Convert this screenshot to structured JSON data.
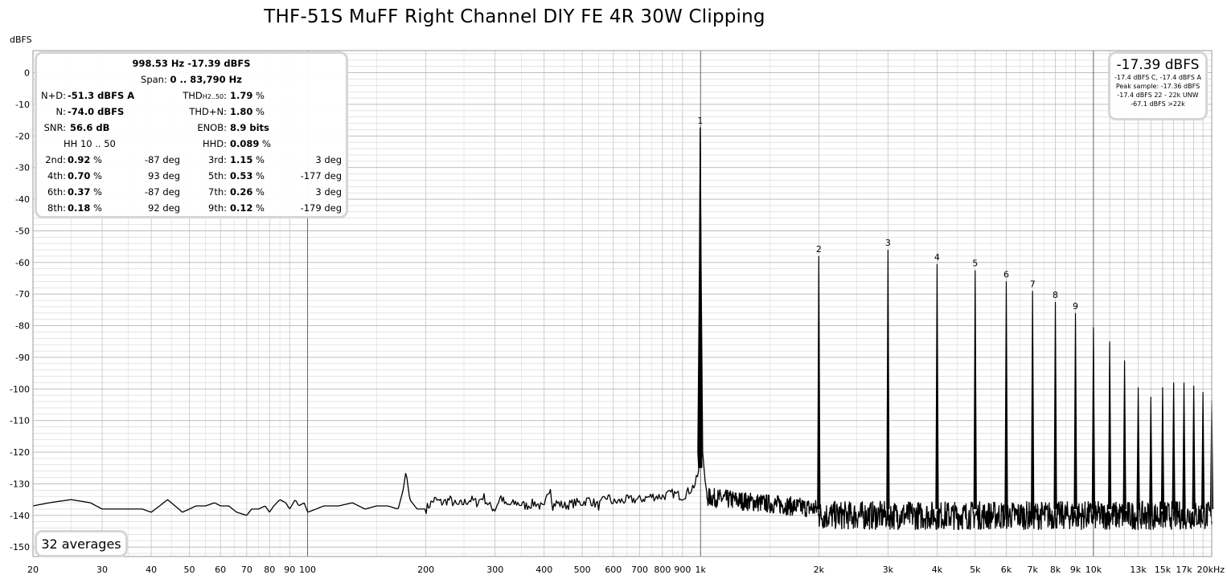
{
  "colors": {
    "trace": "#000000",
    "major_grid": "#7a7a7a",
    "minor_grid": "#d4d4d4",
    "box_border": "#d6d6d6"
  },
  "chart_data": {
    "type": "line",
    "title": "THF-51S MuFF Right Channel DIY FE 4R 30W Clipping",
    "ylabel": "dBFS",
    "xlabel": "",
    "x_scale": "log",
    "xlim": [
      20,
      20000
    ],
    "ylim": [
      -153,
      7
    ],
    "grid": true,
    "y_ticks": [
      0,
      -10,
      -20,
      -30,
      -40,
      -50,
      -60,
      -70,
      -80,
      -90,
      -100,
      -110,
      -120,
      -130,
      -140,
      -150
    ],
    "x_ticks": [
      {
        "value": 20,
        "label": "20"
      },
      {
        "value": 30,
        "label": "30"
      },
      {
        "value": 40,
        "label": "40"
      },
      {
        "value": 50,
        "label": "50"
      },
      {
        "value": 60,
        "label": "60"
      },
      {
        "value": 70,
        "label": "70"
      },
      {
        "value": 80,
        "label": "80"
      },
      {
        "value": 90,
        "label": "90"
      },
      {
        "value": 100,
        "label": "100"
      },
      {
        "value": 200,
        "label": "200"
      },
      {
        "value": 300,
        "label": "300"
      },
      {
        "value": 400,
        "label": "400"
      },
      {
        "value": 500,
        "label": "500"
      },
      {
        "value": 600,
        "label": "600"
      },
      {
        "value": 700,
        "label": "700"
      },
      {
        "value": 800,
        "label": "800"
      },
      {
        "value": 900,
        "label": "900"
      },
      {
        "value": 1000,
        "label": "1k"
      },
      {
        "value": 2000,
        "label": "2k"
      },
      {
        "value": 3000,
        "label": "3k"
      },
      {
        "value": 4000,
        "label": "4k"
      },
      {
        "value": 5000,
        "label": "5k"
      },
      {
        "value": 6000,
        "label": "6k"
      },
      {
        "value": 7000,
        "label": "7k"
      },
      {
        "value": 8000,
        "label": "8k"
      },
      {
        "value": 9000,
        "label": "9k"
      },
      {
        "value": 10000,
        "label": "10k"
      },
      {
        "value": 13000,
        "label": "13k"
      },
      {
        "value": 15000,
        "label": "15k"
      },
      {
        "value": 17000,
        "label": "17k"
      },
      {
        "value": 20000,
        "label": "20kHz"
      }
    ],
    "noise_floor": {
      "x": [
        20,
        22,
        25,
        28,
        30,
        32,
        35,
        38,
        40,
        42,
        44,
        46,
        48,
        50,
        52,
        55,
        58,
        60,
        63,
        66,
        70,
        72,
        75,
        78,
        80,
        82,
        85,
        88,
        90,
        93,
        95,
        98,
        100,
        105,
        110,
        120,
        130,
        140,
        150,
        160,
        170,
        175,
        178,
        182,
        190,
        200,
        210,
        220,
        230,
        240,
        250,
        260,
        270,
        280,
        290,
        300,
        310,
        320,
        340,
        360,
        380,
        400,
        410,
        415,
        420,
        430,
        450,
        480,
        500,
        520,
        550,
        580,
        600,
        650,
        700,
        750,
        800,
        850,
        900,
        940,
        970,
        990
      ],
      "y": [
        -137,
        -136,
        -135,
        -136,
        -138,
        -138,
        -138,
        -138,
        -139,
        -137,
        -135,
        -137,
        -139,
        -138,
        -137,
        -137,
        -136,
        -137,
        -137,
        -139,
        -140,
        -138,
        -138,
        -137,
        -139,
        -137,
        -135,
        -136,
        -138,
        -135,
        -137,
        -136,
        -139,
        -138,
        -137,
        -137,
        -136,
        -138,
        -137,
        -137,
        -138,
        -132,
        -126,
        -135,
        -138,
        -138,
        -135,
        -136,
        -135,
        -137,
        -136,
        -135,
        -136,
        -134,
        -137,
        -138,
        -134,
        -137,
        -136,
        -137,
        -136,
        -138,
        -132,
        -131,
        -137,
        -136,
        -137,
        -136,
        -136,
        -135,
        -137,
        -134,
        -136,
        -135,
        -135,
        -134,
        -134,
        -133,
        -134,
        -132,
        -130,
        -126
      ]
    },
    "hf_floor_level": -140,
    "fundamental": {
      "freq": 998.53,
      "level": -17.39,
      "label": "1"
    },
    "harmonics": [
      {
        "label": "2",
        "freq": 2000,
        "level": -58
      },
      {
        "label": "3",
        "freq": 3000,
        "level": -56
      },
      {
        "label": "4",
        "freq": 4000,
        "level": -60.5
      },
      {
        "label": "5",
        "freq": 5000,
        "level": -62.5
      },
      {
        "label": "6",
        "freq": 6000,
        "level": -66
      },
      {
        "label": "7",
        "freq": 7000,
        "level": -69
      },
      {
        "label": "8",
        "freq": 8000,
        "level": -72.5
      },
      {
        "label": "9",
        "freq": 9000,
        "level": -76
      },
      {
        "label": "",
        "freq": 10000,
        "level": -80.5
      },
      {
        "label": "",
        "freq": 11000,
        "level": -85
      },
      {
        "label": "",
        "freq": 12000,
        "level": -91
      },
      {
        "label": "",
        "freq": 13000,
        "level": -99.5
      },
      {
        "label": "",
        "freq": 14000,
        "level": -102.5
      },
      {
        "label": "",
        "freq": 15000,
        "level": -99.5
      },
      {
        "label": "",
        "freq": 16000,
        "level": -98
      },
      {
        "label": "",
        "freq": 17000,
        "level": -98
      },
      {
        "label": "",
        "freq": 18000,
        "level": -99
      },
      {
        "label": "",
        "freq": 19000,
        "level": -101
      },
      {
        "label": "",
        "freq": 20000,
        "level": -103.5
      }
    ]
  },
  "stats": {
    "header_line1": "998.53 Hz  -17.39 dBFS",
    "span_label": "Span:",
    "span_value": "0 .. 83,790 Hz",
    "nd_label": "N+D:",
    "nd_value": "-51.3 dBFS A",
    "thd_label": "THD",
    "thd_sub": "H2..50",
    "thd_colon": ":",
    "thd_value": "1.79",
    "thd_unit": "%",
    "n_label": "N:",
    "n_value": "-74.0 dBFS",
    "thdn_label": "THD+N:",
    "thdn_value": "1.80",
    "thdn_unit": "%",
    "snr_label": "SNR:",
    "snr_value": "56.6 dB",
    "enob_label": "ENOB:",
    "enob_value": "8.9 bits",
    "hh_label": "HH 10 .. 50",
    "hhd_label": "HHD:",
    "hhd_value": "0.089",
    "hhd_unit": "%",
    "harmonic_rows": [
      {
        "l_label": "2nd:",
        "l_val": "0.92",
        "l_unit": "%",
        "l_deg": "-87 deg",
        "r_label": "3rd:",
        "r_val": "1.15",
        "r_unit": "%",
        "r_deg": "3 deg"
      },
      {
        "l_label": "4th:",
        "l_val": "0.70",
        "l_unit": "%",
        "l_deg": "93 deg",
        "r_label": "5th:",
        "r_val": "0.53",
        "r_unit": "%",
        "r_deg": "-177 deg"
      },
      {
        "l_label": "6th:",
        "l_val": "0.37",
        "l_unit": "%",
        "l_deg": "-87 deg",
        "r_label": "7th:",
        "r_val": "0.26",
        "r_unit": "%",
        "r_deg": "3 deg"
      },
      {
        "l_label": "8th:",
        "l_val": "0.18",
        "l_unit": "%",
        "l_deg": "92 deg",
        "r_label": "9th:",
        "r_val": "0.12",
        "r_unit": "%",
        "r_deg": "-179 deg"
      }
    ]
  },
  "level_box": {
    "main": "-17.39 dBFS",
    "line1": "-17.4 dBFS C, -17.4 dBFS A",
    "line2": "Peak sample: -17.36 dBFS",
    "line3": "-17.4 dBFS 22 - 22k UNW",
    "line4": "-67.1 dBFS >22k"
  },
  "averages_label": "32 averages"
}
